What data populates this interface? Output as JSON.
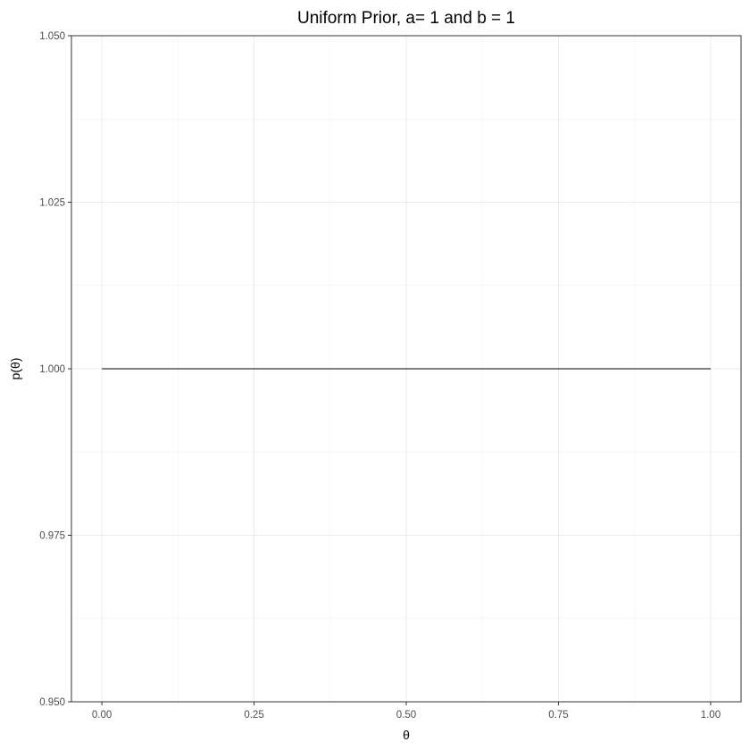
{
  "chart_data": {
    "type": "line",
    "title": "Uniform Prior, a= 1 and b = 1",
    "xlabel": "θ",
    "ylabel": "p(θ)",
    "xlim": [
      -0.05,
      1.05
    ],
    "ylim": [
      0.95,
      1.05
    ],
    "x_ticks": [
      "0.00",
      "0.25",
      "0.50",
      "0.75",
      "1.00"
    ],
    "y_ticks": [
      "0.950",
      "0.975",
      "1.000",
      "1.025",
      "1.050"
    ],
    "grid": true,
    "legend": "none",
    "series": [
      {
        "x": [
          0.0,
          1.0
        ],
        "y": [
          1.0,
          1.0
        ],
        "color": "#000000"
      }
    ]
  }
}
